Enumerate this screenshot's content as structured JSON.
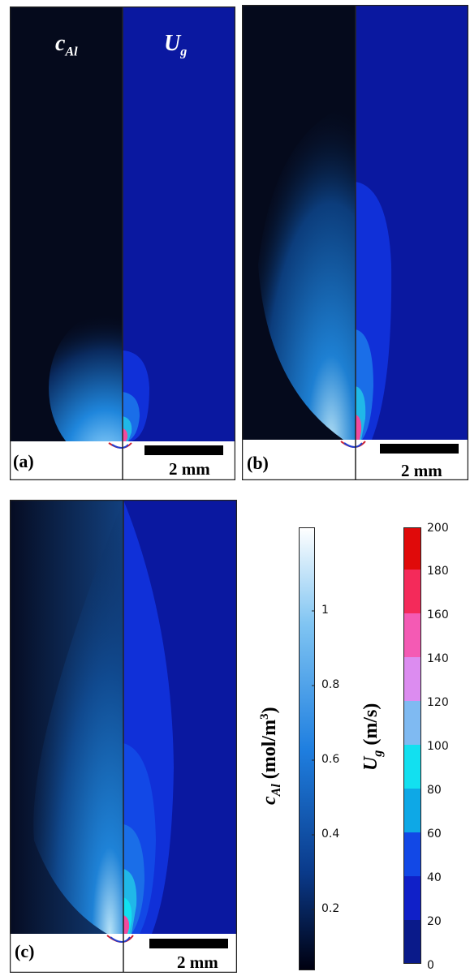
{
  "panels": [
    {
      "label": "(a)",
      "scale_bar": "2 mm"
    },
    {
      "label": "(b)",
      "scale_bar": "2 mm"
    },
    {
      "label": "(c)",
      "scale_bar": "2 mm"
    }
  ],
  "field_labels": {
    "left_symbol": "c",
    "left_sub": "Al",
    "right_symbol": "U",
    "right_sub": "g"
  },
  "colorbar_cal": {
    "symbol": "c",
    "sub": "Al",
    "unit_prefix": " (mol/m",
    "unit_exp": "3",
    "unit_suffix": ")",
    "ticks": [
      "1",
      "0.8",
      "0.6",
      "0.4",
      "0.2"
    ],
    "colors": [
      "#000010",
      "#0a3a8a",
      "#1f7fe0",
      "#7fc4f2",
      "#ffffff"
    ]
  },
  "colorbar_ug": {
    "symbol": "U",
    "sub": "g",
    "unit": " (m/s)",
    "ticks": [
      "200",
      "180",
      "160",
      "140",
      "120",
      "100",
      "80",
      "60",
      "40",
      "20",
      "0"
    ],
    "bands": [
      "#0a1a8a",
      "#1020c8",
      "#1248e6",
      "#0ea8e6",
      "#12e0f0",
      "#7fbaf2",
      "#dc8cf0",
      "#f45ab4",
      "#f42a5a",
      "#e00a0a"
    ]
  }
}
